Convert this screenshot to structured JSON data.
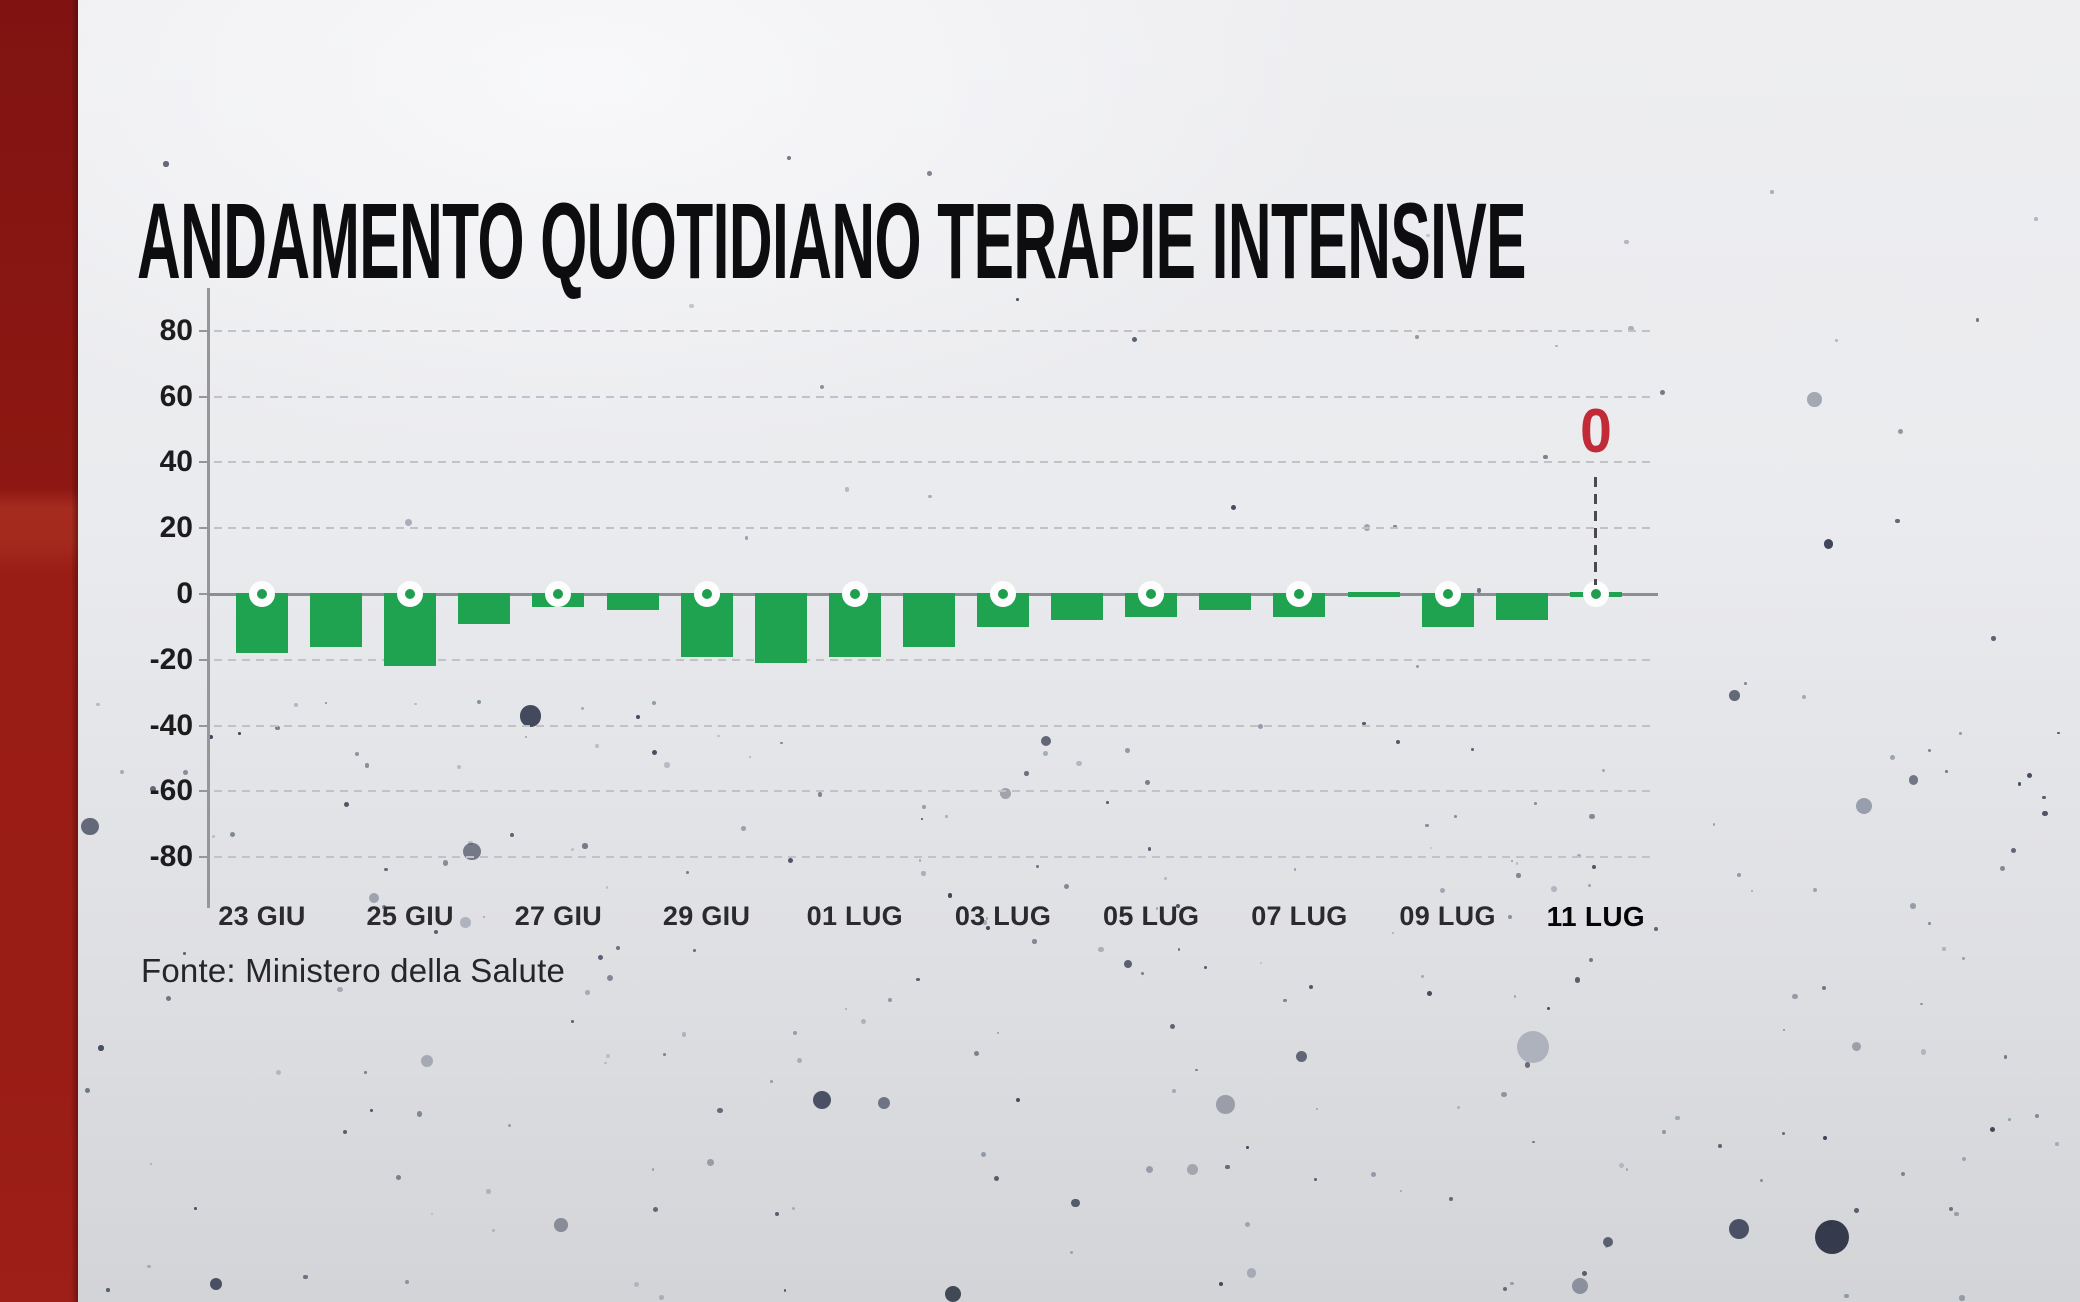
{
  "page": {
    "title": "ANDAMENTO QUOTIDIANO TERAPIE INTENSIVE",
    "source": "Fonte: Ministero della Salute"
  },
  "colors": {
    "bar_green": "#20a351",
    "marker_dot_green": "#1d9f4e",
    "annotation_red": "#c22a37",
    "strip_red": "#991c15",
    "axis_gray": "#8d8e92",
    "grid_gray": "#c1c2c7",
    "text_dark": "#1c1c1e"
  },
  "chart_data": {
    "type": "bar",
    "title": "ANDAMENTO QUOTIDIANO TERAPIE INTENSIVE",
    "source": "Fonte: Ministero della Salute",
    "categories": [
      "23 GIU",
      "24 GIU",
      "25 GIU",
      "26 GIU",
      "27 GIU",
      "28 GIU",
      "29 GIU",
      "30 GIU",
      "01 LUG",
      "02 LUG",
      "03 LUG",
      "04 LUG",
      "05 LUG",
      "06 LUG",
      "07 LUG",
      "08 LUG",
      "09 LUG",
      "10 LUG",
      "11 LUG"
    ],
    "values": [
      -18,
      -16,
      -22,
      -9,
      -4,
      -5,
      -19,
      -21,
      -19,
      -16,
      -10,
      -8,
      -7,
      -5,
      -7,
      0,
      -10,
      -8,
      0
    ],
    "x_tick_labels": [
      "23 GIU",
      "25 GIU",
      "27 GIU",
      "29 GIU",
      "01 LUG",
      "03 LUG",
      "05 LUG",
      "07 LUG",
      "09 LUG",
      "11 LUG"
    ],
    "x_tick_every": 2,
    "yticks": [
      80,
      60,
      40,
      20,
      0,
      -20,
      -40,
      -60,
      -80
    ],
    "ylim": [
      -93,
      93
    ],
    "grid": "horizontal-dashed",
    "legend": "none",
    "bar_color": "#20a351",
    "markers_on_labeled_days": true,
    "annotation": {
      "label": "0",
      "category": "11 LUG",
      "value": 0,
      "color": "#c22a37"
    }
  }
}
